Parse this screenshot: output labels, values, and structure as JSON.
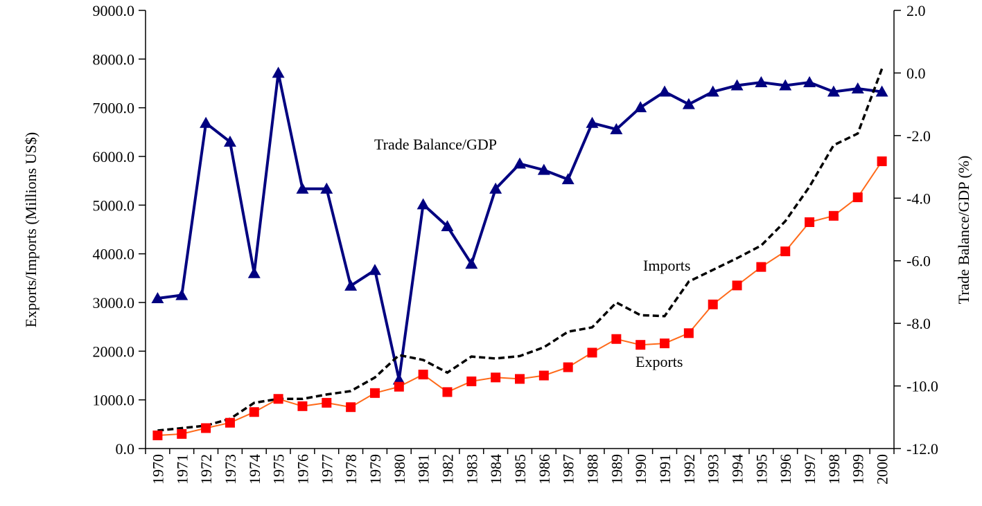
{
  "chart_data": {
    "type": "line",
    "categories": [
      "1970",
      "1971",
      "1972",
      "1973",
      "1974",
      "1975",
      "1976",
      "1977",
      "1978",
      "1979",
      "1980",
      "1981",
      "1982",
      "1983",
      "1984",
      "1985",
      "1986",
      "1987",
      "1988",
      "1989",
      "1990",
      "1991",
      "1992",
      "1993",
      "1994",
      "1995",
      "1996",
      "1997",
      "1998",
      "1999",
      "2000"
    ],
    "ylabel": "Exports/Imports (Millions US$)",
    "y2label": "Trade Balance/GDP (%)",
    "ylim": [
      0,
      9000
    ],
    "yticks": [
      {
        "value": 0,
        "label": "0.0"
      },
      {
        "value": 1000,
        "label": "1000.0"
      },
      {
        "value": 2000,
        "label": "2000.0"
      },
      {
        "value": 3000,
        "label": "3000.0"
      },
      {
        "value": 4000,
        "label": "4000.0"
      },
      {
        "value": 5000,
        "label": "5000.0"
      },
      {
        "value": 6000,
        "label": "6000.0"
      },
      {
        "value": 7000,
        "label": "7000.0"
      },
      {
        "value": 8000,
        "label": "8000.0"
      },
      {
        "value": 9000,
        "label": "9000.0"
      }
    ],
    "y2lim": [
      -12,
      2
    ],
    "y2ticks": [
      {
        "value": -12,
        "label": "-12.0"
      },
      {
        "value": -10,
        "label": "-10.0"
      },
      {
        "value": -8,
        "label": "-8.0"
      },
      {
        "value": -6,
        "label": "-6.0"
      },
      {
        "value": -4,
        "label": "-4.0"
      },
      {
        "value": -2,
        "label": "-2.0"
      },
      {
        "value": 0,
        "label": "0.0"
      },
      {
        "value": 2,
        "label": "2.0"
      }
    ],
    "series": [
      {
        "name": "Trade Balance/GDP",
        "color": "#000080",
        "axis": "y2",
        "marker": "triangle",
        "values": [
          -7.2,
          -7.1,
          -1.6,
          -2.2,
          -6.4,
          0.0,
          -3.7,
          -3.7,
          -6.8,
          -6.3,
          -9.8,
          -4.2,
          -4.9,
          -6.1,
          -3.7,
          -2.9,
          -3.1,
          -3.4,
          -1.6,
          -1.8,
          -1.1,
          -0.6,
          -1.0,
          -0.6,
          -0.4,
          -0.3,
          -0.4,
          -0.3,
          -0.6,
          -0.5,
          -0.6
        ]
      },
      {
        "name": "Imports",
        "color": "#000000",
        "dashed": true,
        "values": [
          370,
          420,
          470,
          610,
          940,
          1020,
          1020,
          1110,
          1180,
          1460,
          1920,
          1820,
          1560,
          1890,
          1850,
          1900,
          2080,
          2400,
          2490,
          3000,
          2740,
          2720,
          3430,
          3670,
          3910,
          4170,
          4670,
          5380,
          6230,
          6470,
          7800
        ]
      },
      {
        "name": "Exports",
        "color": "#ff6a1a",
        "marker": "square",
        "marker_color": "#ff0000",
        "values": [
          270,
          300,
          420,
          530,
          750,
          1020,
          870,
          940,
          850,
          1140,
          1270,
          1520,
          1160,
          1380,
          1460,
          1430,
          1500,
          1670,
          1970,
          2250,
          2130,
          2160,
          2370,
          2960,
          3350,
          3730,
          4050,
          4650,
          4780,
          5160,
          5900
        ]
      }
    ]
  }
}
